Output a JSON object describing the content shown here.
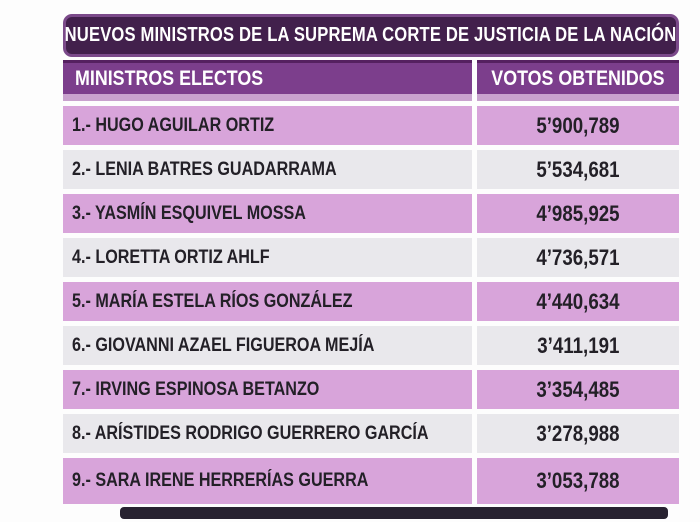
{
  "title_bar": {
    "text": "NUEVOS MINISTROS DE LA SUPREMA CORTE DE JUSTICIA DE LA NACIÓN",
    "bg": "#42204c",
    "border_color": "#7b4a8a",
    "text_color": "#ffffff"
  },
  "table": {
    "header": {
      "col_ministros": "MINISTROS ELECTOS",
      "col_votos": "VOTOS OBTENIDOS",
      "bg": "#7c3e8c",
      "top_border_color": "#552060",
      "bottom_border_color": "#c9a2ce",
      "text_color": "#ffffff"
    },
    "row_colors": {
      "pink": "#d8a4da",
      "grey": "#e9e8ec",
      "text": "#232027"
    },
    "rows": [
      {
        "label": "1.- HUGO AGUILAR ORTIZ",
        "votes": "5’900,789"
      },
      {
        "label": "2.- LENIA BATRES GUADARRAMA",
        "votes": "5’534,681"
      },
      {
        "label": "3.- YASMÍN ESQUIVEL MOSSA",
        "votes": "4’985,925"
      },
      {
        "label": "4.- LORETTA ORTIZ AHLF",
        "votes": "4’736,571"
      },
      {
        "label": "5.- MARÍA ESTELA RÍOS GONZÁLEZ",
        "votes": "4’440,634"
      },
      {
        "label": "6.- GIOVANNI AZAEL FIGUEROA MEJÍA",
        "votes": "3’411,191"
      },
      {
        "label": "7.- IRVING ESPINOSA BETANZO",
        "votes": "3’354,485"
      },
      {
        "label": "8.- ARÍSTIDES RODRIGO GUERRERO GARCÍA",
        "votes": "3’278,988"
      },
      {
        "label": "9.- SARA IRENE HERRERÍAS GUERRA",
        "votes": "3’053,788"
      }
    ]
  },
  "footer_bar": {
    "color": "#272230"
  },
  "chart_data": {
    "type": "table",
    "title": "NUEVOS MINISTROS DE LA SUPREMA CORTE DE JUSTICIA DE LA NACIÓN",
    "columns": [
      "MINISTROS ELECTOS",
      "VOTOS OBTENIDOS"
    ],
    "categories": [
      "HUGO AGUILAR ORTIZ",
      "LENIA BATRES GUADARRAMA",
      "YASMÍN ESQUIVEL MOSSA",
      "LORETTA ORTIZ AHLF",
      "MARÍA ESTELA RÍOS GONZÁLEZ",
      "GIOVANNI AZAEL FIGUEROA MEJÍA",
      "IRVING ESPINOSA BETANZO",
      "ARÍSTIDES RODRIGO GUERRERO GARCÍA",
      "SARA IRENE HERRERÍAS GUERRA"
    ],
    "values": [
      5900789,
      5534681,
      4985925,
      4736571,
      4440634,
      3411191,
      3354485,
      3278988,
      3053788
    ],
    "values_formatted": [
      "5’900,789",
      "5’534,681",
      "4’985,925",
      "4’736,571",
      "4’440,634",
      "3’411,191",
      "3’354,485",
      "3’278,988",
      "3’053,788"
    ],
    "ranks": [
      1,
      2,
      3,
      4,
      5,
      6,
      7,
      8,
      9
    ]
  }
}
